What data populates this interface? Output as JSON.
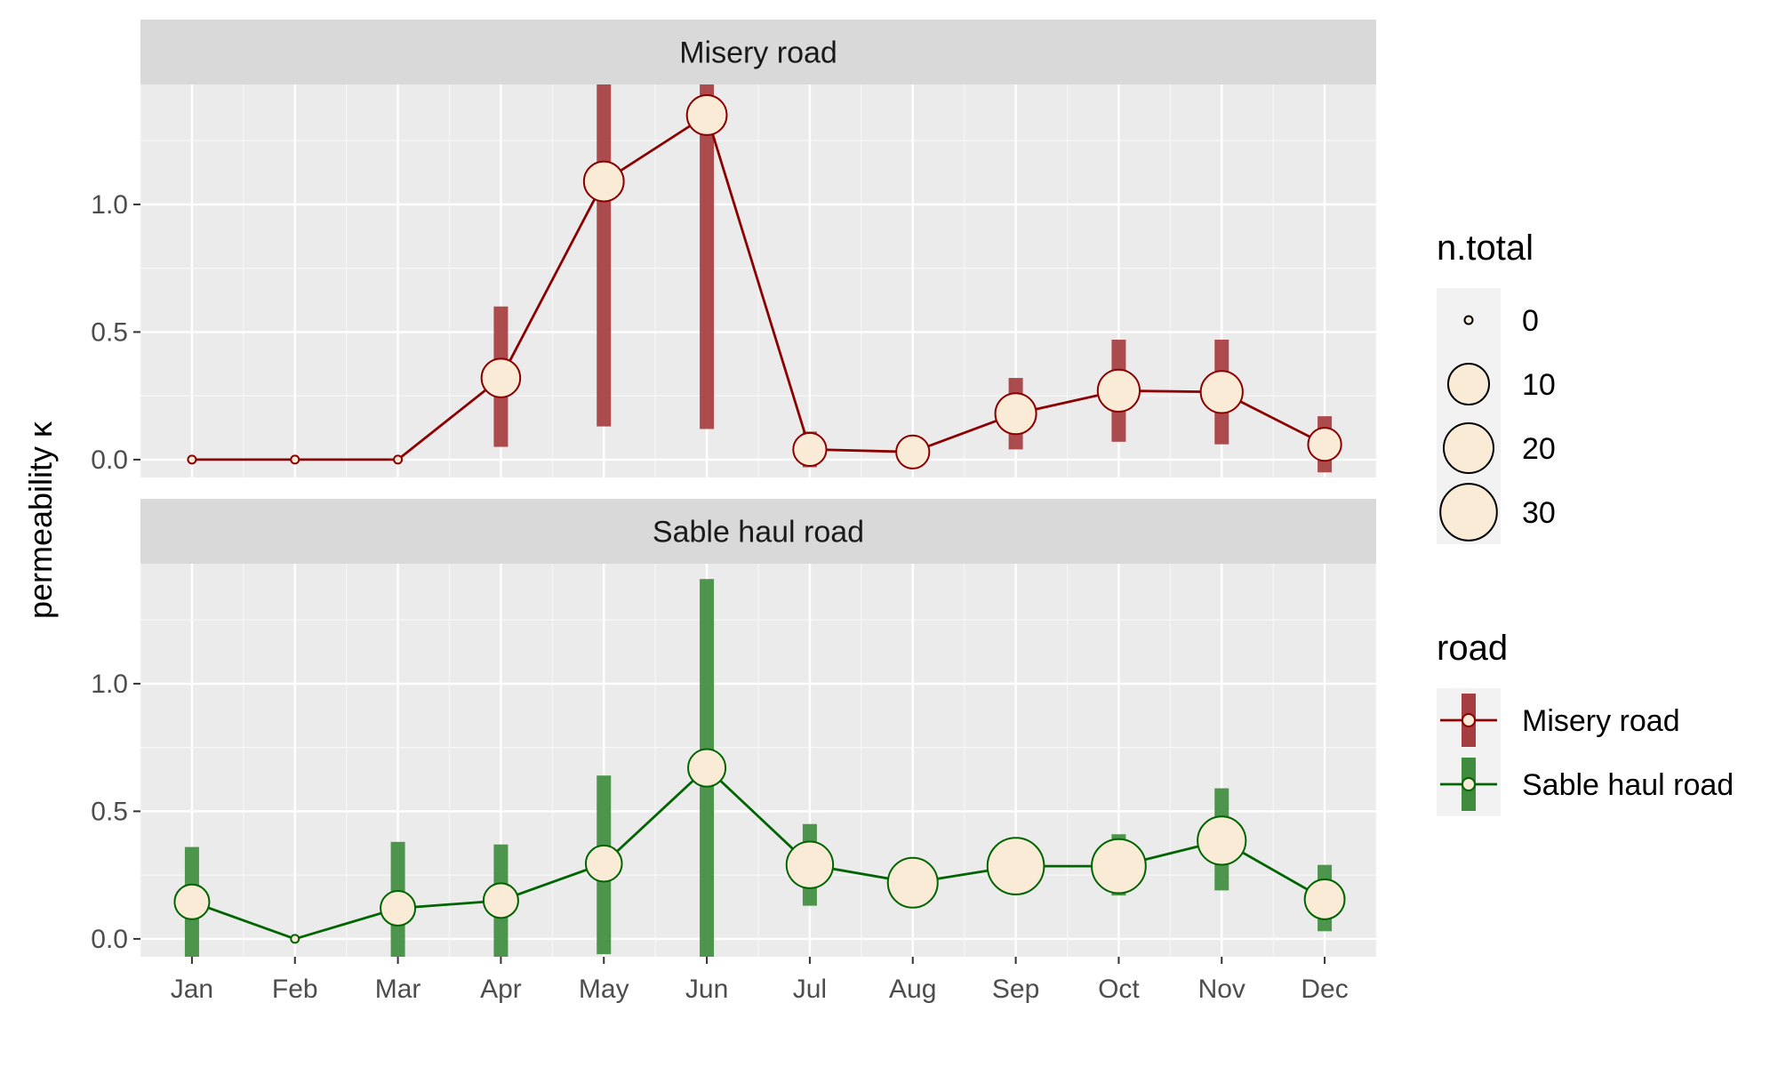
{
  "chart_data": {
    "type": "line",
    "ylabel": "permeability κ",
    "x_categories": [
      "Jan",
      "Feb",
      "Mar",
      "Apr",
      "May",
      "Jun",
      "Jul",
      "Aug",
      "Sep",
      "Oct",
      "Nov",
      "Dec"
    ],
    "ylim": [
      -0.07,
      1.47
    ],
    "y_ticks": [
      0.0,
      0.5,
      1.0
    ],
    "y_tick_labels": [
      "0.0",
      "0.5",
      "1.0"
    ],
    "grid": true,
    "panels": [
      {
        "strip_label": "Misery road",
        "series": "Misery road",
        "color": "#8B0000",
        "bar_color": "#A63D40",
        "values": [
          0.0,
          0.0,
          0.0,
          0.32,
          1.09,
          1.35,
          0.04,
          0.03,
          0.18,
          0.27,
          0.265,
          0.06
        ],
        "lower": [
          null,
          null,
          null,
          0.05,
          0.13,
          0.12,
          -0.03,
          -0.03,
          0.04,
          0.07,
          0.06,
          -0.05
        ],
        "upper": [
          null,
          null,
          null,
          0.6,
          1.47,
          1.47,
          0.11,
          0.09,
          0.32,
          0.47,
          0.47,
          0.17
        ],
        "n_total": [
          0,
          0,
          0,
          8,
          9,
          9,
          4,
          4,
          10,
          11,
          11,
          4
        ]
      },
      {
        "strip_label": "Sable haul road",
        "series": "Sable haul road",
        "color": "#006400",
        "bar_color": "#3F8C3F",
        "values": [
          0.145,
          0.0,
          0.12,
          0.15,
          0.295,
          0.67,
          0.29,
          0.22,
          0.285,
          0.285,
          0.385,
          0.155
        ],
        "lower": [
          -0.07,
          null,
          -0.07,
          -0.07,
          -0.06,
          -0.07,
          0.13,
          0.13,
          0.19,
          0.17,
          0.19,
          0.03
        ],
        "upper": [
          0.36,
          null,
          0.38,
          0.37,
          0.64,
          1.41,
          0.45,
          0.31,
          0.39,
          0.41,
          0.59,
          0.29
        ],
        "n_total": [
          5,
          0,
          5,
          5,
          6,
          7,
          16,
          20,
          30,
          26,
          18,
          9
        ]
      }
    ],
    "legend": {
      "placement": "right",
      "size_title": "n.total",
      "size_values": [
        0,
        10,
        20,
        30
      ],
      "size_labels": [
        "0",
        "10",
        "20",
        "30"
      ],
      "color_title": "road",
      "color_items": [
        {
          "label": "Misery road",
          "color": "#8B0000",
          "bar_color": "#A63D40"
        },
        {
          "label": "Sable haul road",
          "color": "#006400",
          "bar_color": "#3F8C3F"
        }
      ]
    }
  }
}
